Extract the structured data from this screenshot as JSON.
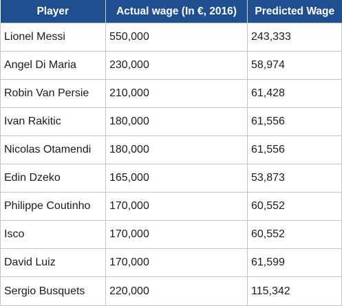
{
  "table": {
    "headers": [
      "Player",
      "Actual wage (In €, 2016)",
      "Predicted Wage"
    ],
    "rows": [
      [
        "Lionel Messi",
        "550,000",
        "243,333"
      ],
      [
        "Angel Di Maria",
        "230,000",
        "58,974"
      ],
      [
        "Robin Van Persie",
        "210,000",
        "61,428"
      ],
      [
        "Ivan Rakitic",
        "180,000",
        "61,556"
      ],
      [
        "Nicolas Otamendi",
        "180,000",
        "61,556"
      ],
      [
        "Edin Dzeko",
        "165,000",
        "53,873"
      ],
      [
        "Philippe Coutinho",
        "170,000",
        "60,552"
      ],
      [
        "Isco",
        "170,000",
        "60,552"
      ],
      [
        "David Luiz",
        "170,000",
        "61,599"
      ],
      [
        "Sergio Busquets",
        "220,000",
        "115,342"
      ]
    ]
  }
}
